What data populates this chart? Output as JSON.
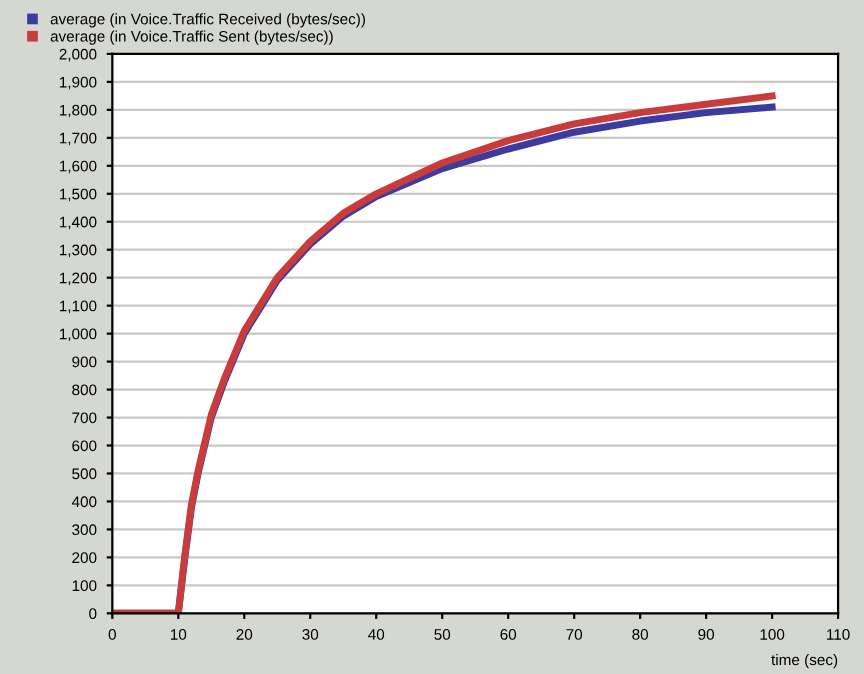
{
  "chart_data": {
    "type": "line",
    "xlabel": "time (sec)",
    "xlim": [
      0,
      110
    ],
    "xticks": [
      0,
      10,
      20,
      30,
      40,
      50,
      60,
      70,
      80,
      90,
      100,
      110
    ],
    "ylim": [
      0,
      2000
    ],
    "yticks": [
      0,
      {
        "value": 100,
        "label": "100"
      },
      {
        "value": 200,
        "label": "200"
      },
      {
        "value": 300,
        "label": "300"
      },
      {
        "value": 400,
        "label": "400"
      },
      {
        "value": 500,
        "label": "500"
      },
      {
        "value": 600,
        "label": "600"
      },
      {
        "value": 700,
        "label": "700"
      },
      {
        "value": 800,
        "label": "800"
      },
      {
        "value": 900,
        "label": "900"
      },
      {
        "value": 1000,
        "label": "1,000"
      },
      {
        "value": 1100,
        "label": "1,100"
      },
      {
        "value": 1200,
        "label": "1,200"
      },
      {
        "value": 1300,
        "label": "1,300"
      },
      {
        "value": 1400,
        "label": "1,400"
      },
      {
        "value": 1500,
        "label": "1,500"
      },
      {
        "value": 1600,
        "label": "1,600"
      },
      {
        "value": 1700,
        "label": "1,700"
      },
      {
        "value": 1800,
        "label": "1,800"
      },
      {
        "value": 1900,
        "label": "1,900"
      },
      {
        "value": 2000,
        "label": "2,000"
      }
    ],
    "grid": "y",
    "legend": "top left",
    "series": [
      {
        "name": "average (in Voice.Traffic Received (bytes/sec))",
        "color": "#3c3ca0",
        "x": [
          0,
          10,
          11,
          12,
          13,
          15,
          17,
          20,
          25,
          30,
          35,
          40,
          50,
          60,
          70,
          80,
          90,
          100
        ],
        "values": [
          0,
          0,
          200,
          380,
          500,
          700,
          830,
          1000,
          1190,
          1320,
          1420,
          1490,
          1590,
          1660,
          1720,
          1760,
          1790,
          1810
        ]
      },
      {
        "name": "average (in Voice.Traffic Sent (bytes/sec))",
        "color": "#c83c3c",
        "x": [
          0,
          10,
          11,
          12,
          13,
          15,
          17,
          20,
          25,
          30,
          35,
          40,
          50,
          60,
          70,
          80,
          90,
          100
        ],
        "values": [
          0,
          0,
          210,
          390,
          510,
          710,
          840,
          1010,
          1200,
          1330,
          1430,
          1500,
          1610,
          1690,
          1750,
          1790,
          1820,
          1850
        ]
      }
    ]
  }
}
